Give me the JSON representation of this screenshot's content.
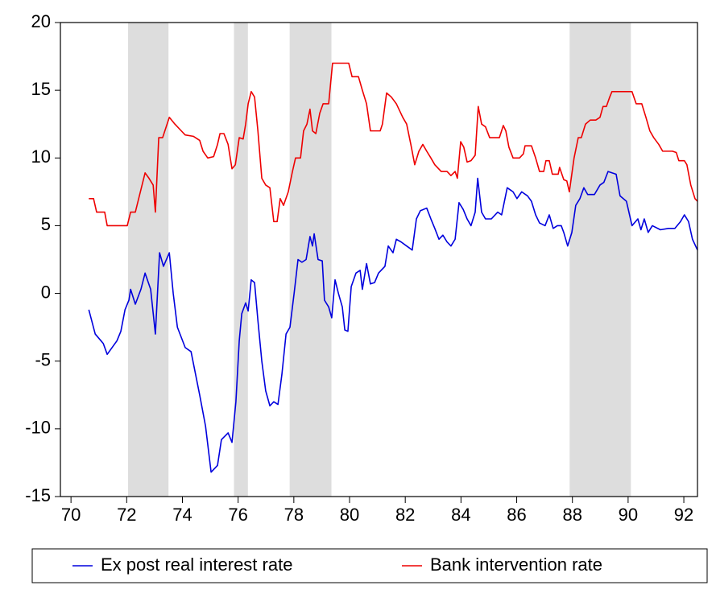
{
  "chart_data": {
    "type": "line",
    "xlim": [
      69.62,
      92.49
    ],
    "ylim": [
      -15,
      20
    ],
    "xticks": [
      70,
      72,
      74,
      76,
      78,
      80,
      82,
      84,
      86,
      88,
      90,
      92
    ],
    "yticks": [
      -15,
      -10,
      -5,
      0,
      5,
      10,
      15,
      20
    ],
    "shaded_spans": [
      [
        72.05,
        73.5
      ],
      [
        75.85,
        76.35
      ],
      [
        77.85,
        79.35
      ],
      [
        87.9,
        90.1
      ]
    ],
    "shade_color": "#dddddd",
    "legend": "bottom",
    "series": [
      {
        "name": "Ex post real interest rate",
        "color": "#0000dd",
        "x": [
          70.64,
          70.87,
          71.16,
          71.3,
          71.65,
          71.79,
          71.94,
          72.08,
          72.14,
          72.31,
          72.51,
          72.66,
          72.86,
          73.03,
          73.18,
          73.32,
          73.53,
          73.67,
          73.82,
          74.1,
          74.31,
          74.62,
          74.83,
          75.03,
          75.26,
          75.4,
          75.64,
          75.78,
          75.92,
          76.04,
          76.13,
          76.27,
          76.36,
          76.47,
          76.59,
          76.71,
          76.85,
          76.99,
          77.14,
          77.28,
          77.43,
          77.57,
          77.72,
          77.86,
          78.01,
          78.15,
          78.29,
          78.44,
          78.58,
          78.67,
          78.73,
          78.87,
          79.02,
          79.1,
          79.25,
          79.36,
          79.48,
          79.6,
          79.74,
          79.83,
          79.94,
          80.06,
          80.23,
          80.38,
          80.46,
          80.61,
          80.75,
          80.9,
          81.04,
          81.27,
          81.39,
          81.56,
          81.68,
          81.85,
          82.05,
          82.25,
          82.4,
          82.54,
          82.77,
          82.92,
          83.06,
          83.21,
          83.35,
          83.5,
          83.64,
          83.79,
          83.93,
          84.08,
          84.22,
          84.36,
          84.51,
          84.6,
          84.74,
          84.88,
          85.09,
          85.32,
          85.46,
          85.66,
          85.87,
          86.01,
          86.18,
          86.39,
          86.53,
          86.68,
          86.82,
          87.02,
          87.17,
          87.31,
          87.46,
          87.6,
          87.69,
          87.83,
          87.98,
          88.12,
          88.27,
          88.41,
          88.55,
          88.79,
          88.99,
          89.13,
          89.28,
          89.42,
          89.57,
          89.71,
          89.94,
          90.14,
          90.35,
          90.46,
          90.58,
          90.72,
          90.87,
          91.16,
          91.45,
          91.68,
          91.88,
          92.02,
          92.17,
          92.31,
          92.49
        ],
        "values": [
          -1.2,
          -3,
          -3.7,
          -4.5,
          -3.5,
          -2.8,
          -1.2,
          -0.5,
          0.3,
          -0.8,
          0.3,
          1.5,
          0.3,
          -3,
          3,
          2,
          3,
          0,
          -2.5,
          -4,
          -4.3,
          -7.5,
          -9.8,
          -13.2,
          -12.7,
          -10.8,
          -10.3,
          -11,
          -8,
          -3.5,
          -1.5,
          -0.7,
          -1.3,
          1,
          0.8,
          -2,
          -5,
          -7.2,
          -8.3,
          -8,
          -8.2,
          -6,
          -3,
          -2.5,
          0,
          2.5,
          2.3,
          2.5,
          4.2,
          3.5,
          4.4,
          2.5,
          2.4,
          -0.5,
          -1,
          -1.8,
          1,
          0,
          -1,
          -2.7,
          -2.8,
          0.5,
          1.5,
          1.7,
          0.3,
          2.2,
          0.7,
          0.8,
          1.5,
          2,
          3.5,
          3,
          4,
          3.8,
          3.5,
          3.2,
          5.5,
          6.1,
          6.3,
          5.5,
          4.8,
          4,
          4.3,
          3.8,
          3.5,
          4,
          6.7,
          6.2,
          5.5,
          5,
          6,
          8.5,
          6,
          5.5,
          5.5,
          6,
          5.8,
          7.8,
          7.5,
          7,
          7.5,
          7.2,
          6.8,
          5.8,
          5.2,
          5,
          5.8,
          4.8,
          5,
          5,
          4.5,
          3.5,
          4.5,
          6.5,
          7,
          7.8,
          7.3,
          7.3,
          8,
          8.2,
          9,
          8.9,
          8.8,
          7.2,
          6.8,
          5,
          5.5,
          4.7,
          5.5,
          4.5,
          5,
          4.7,
          4.8,
          4.8,
          5.3,
          5.8,
          5.3,
          4,
          3.2
        ]
      },
      {
        "name": "Bank intervention rate",
        "color": "#ee0000",
        "x": [
          70.64,
          70.81,
          70.92,
          71.21,
          71.3,
          72.02,
          72.14,
          72.31,
          72.43,
          72.66,
          72.8,
          72.95,
          73.03,
          73.15,
          73.29,
          73.53,
          73.73,
          73.96,
          74.1,
          74.39,
          74.62,
          74.74,
          74.91,
          75.12,
          75.26,
          75.35,
          75.49,
          75.64,
          75.78,
          75.9,
          76.04,
          76.18,
          76.27,
          76.36,
          76.47,
          76.59,
          76.71,
          76.85,
          76.99,
          77.14,
          77.28,
          77.4,
          77.51,
          77.63,
          77.8,
          77.95,
          78.06,
          78.24,
          78.35,
          78.47,
          78.58,
          78.67,
          78.79,
          78.93,
          79.05,
          79.25,
          79.39,
          79.97,
          80.09,
          80.32,
          80.46,
          80.61,
          80.75,
          81.1,
          81.18,
          81.33,
          81.5,
          81.68,
          81.91,
          82.05,
          82.2,
          82.34,
          82.49,
          82.63,
          82.77,
          82.92,
          83.06,
          83.29,
          83.5,
          83.64,
          83.79,
          83.87,
          83.99,
          84.1,
          84.22,
          84.36,
          84.51,
          84.62,
          84.74,
          84.88,
          85.03,
          85.38,
          85.52,
          85.61,
          85.72,
          85.87,
          86.1,
          86.24,
          86.3,
          86.53,
          86.68,
          86.82,
          86.97,
          87.05,
          87.17,
          87.28,
          87.49,
          87.54,
          87.69,
          87.8,
          87.89,
          88.06,
          88.21,
          88.32,
          88.47,
          88.64,
          88.84,
          88.99,
          89.1,
          89.22,
          89.34,
          89.42,
          90.14,
          90.29,
          90.49,
          90.64,
          90.78,
          90.92,
          91.1,
          91.24,
          91.59,
          91.73,
          91.82,
          92.02,
          92.11,
          92.25,
          92.4,
          92.49
        ],
        "values": [
          7,
          7,
          6,
          6,
          5,
          5,
          6,
          6,
          7,
          8.9,
          8.5,
          8,
          6,
          11.5,
          11.5,
          13,
          12.5,
          12,
          11.7,
          11.6,
          11.3,
          10.5,
          10,
          10.1,
          11,
          11.8,
          11.8,
          11,
          9.2,
          9.5,
          11.5,
          11.4,
          12.5,
          14,
          14.9,
          14.5,
          12,
          8.5,
          8,
          7.8,
          5.3,
          5.3,
          7,
          6.5,
          7.5,
          9,
          10,
          10,
          12,
          12.5,
          13.6,
          12,
          11.8,
          13.3,
          14,
          14,
          17,
          17,
          16,
          16,
          15,
          14,
          12,
          12,
          12.5,
          14.8,
          14.5,
          14,
          13,
          12.5,
          11,
          9.5,
          10.5,
          11,
          10.5,
          10,
          9.5,
          9,
          9,
          8.7,
          9,
          8.5,
          11.2,
          10.8,
          9.7,
          9.8,
          10.2,
          13.8,
          12.5,
          12.3,
          11.5,
          11.5,
          12.4,
          12,
          10.8,
          10,
          10,
          10.3,
          10.9,
          10.9,
          10,
          9,
          9,
          9.8,
          9.8,
          8.8,
          8.8,
          9.3,
          8.4,
          8.3,
          7.5,
          10,
          11.5,
          11.5,
          12.5,
          12.8,
          12.8,
          13,
          13.8,
          13.8,
          14.5,
          14.9,
          14.9,
          14,
          14,
          13,
          12,
          11.5,
          11,
          10.5,
          10.5,
          10.4,
          9.8,
          9.8,
          9.5,
          8,
          7,
          6.8
        ]
      }
    ]
  }
}
